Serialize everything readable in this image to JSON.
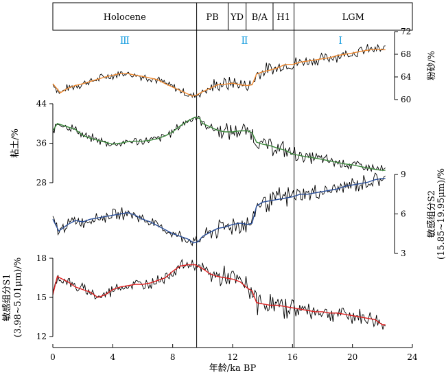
{
  "chart_data": {
    "type": "line",
    "x_axis": {
      "label": "年龄/ka BP",
      "range": [
        0,
        24
      ],
      "ticks": [
        "0",
        "4",
        "8",
        "12",
        "16",
        "20",
        "24"
      ]
    },
    "stages": [
      {
        "name": "Holocene",
        "start": 0,
        "end": 9.6
      },
      {
        "name": "PB",
        "start": 9.6,
        "end": 11.7
      },
      {
        "name": "YD",
        "start": 11.7,
        "end": 12.9
      },
      {
        "name": "B/A",
        "start": 12.9,
        "end": 14.7
      },
      {
        "name": "H1",
        "start": 14.7,
        "end": 16.1
      },
      {
        "name": "LGM",
        "start": 16.1,
        "end": 24
      }
    ],
    "zones": [
      {
        "label": "Ⅲ",
        "x": 4.8
      },
      {
        "label": "Ⅱ",
        "x": 12.8
      },
      {
        "label": "Ⅰ",
        "x": 19.2
      }
    ],
    "boundaries": [
      9.6,
      16.1
    ],
    "zone_color": "#1ea0e0",
    "raw_color": "#000000",
    "panels": [
      {
        "id": "silt",
        "ylabel": "粉砂/%",
        "axis_side": "right",
        "ylim": [
          60,
          72
        ],
        "ticks": [
          "60",
          "64",
          "68",
          "72"
        ],
        "smooth_color": "#f08a30",
        "anchors": [
          [
            0,
            62.8
          ],
          [
            0.5,
            61.2
          ],
          [
            1,
            62
          ],
          [
            1.5,
            62.5
          ],
          [
            2,
            62.8
          ],
          [
            2.5,
            63.2
          ],
          [
            3,
            63.6
          ],
          [
            3.5,
            64
          ],
          [
            4,
            64.3
          ],
          [
            4.5,
            64.6
          ],
          [
            5,
            64.6
          ],
          [
            5.5,
            64.3
          ],
          [
            6,
            64.1
          ],
          [
            6.5,
            63.8
          ],
          [
            7,
            63.5
          ],
          [
            7.5,
            62.8
          ],
          [
            8,
            62.2
          ],
          [
            8.5,
            61.6
          ],
          [
            9,
            61
          ],
          [
            9.3,
            60.6
          ],
          [
            9.6,
            60.8
          ],
          [
            10,
            61.4
          ],
          [
            10.5,
            62
          ],
          [
            11,
            62.6
          ],
          [
            11.5,
            62.7
          ],
          [
            12,
            62.9
          ],
          [
            12.5,
            62.6
          ],
          [
            13,
            62.5
          ],
          [
            13.3,
            62.6
          ],
          [
            13.6,
            64.5
          ],
          [
            14,
            64.9
          ],
          [
            14.5,
            65.2
          ],
          [
            15,
            65.6
          ],
          [
            15.5,
            66.2
          ],
          [
            16,
            66.2
          ],
          [
            16.5,
            66.6
          ],
          [
            17,
            66.8
          ],
          [
            17.5,
            67
          ],
          [
            18,
            67.2
          ],
          [
            18.5,
            67.4
          ],
          [
            19,
            67.8
          ],
          [
            19.5,
            68
          ],
          [
            20,
            68.2
          ],
          [
            20.5,
            68.5
          ],
          [
            21,
            68.7
          ],
          [
            21.5,
            68.9
          ],
          [
            22,
            68.8
          ],
          [
            22.2,
            68.8
          ]
        ],
        "noise": 0.9
      },
      {
        "id": "clay",
        "ylabel": "粘土/%",
        "axis_side": "left",
        "ylim": [
          28,
          44
        ],
        "ticks": [
          "28",
          "36",
          "44"
        ],
        "smooth_color": "#3c8a3c",
        "anchors": [
          [
            0,
            38.5
          ],
          [
            0.3,
            40
          ],
          [
            1,
            39.3
          ],
          [
            1.5,
            38.8
          ],
          [
            2,
            37.6
          ],
          [
            2.5,
            37
          ],
          [
            3,
            36.6
          ],
          [
            3.5,
            36.2
          ],
          [
            4,
            35.8
          ],
          [
            4.5,
            36
          ],
          [
            5,
            36.3
          ],
          [
            5.5,
            36.4
          ],
          [
            6,
            36.4
          ],
          [
            6.5,
            36.6
          ],
          [
            7,
            36.9
          ],
          [
            7.5,
            37.5
          ],
          [
            8,
            38.3
          ],
          [
            8.5,
            39.5
          ],
          [
            9,
            40.5
          ],
          [
            9.5,
            41.3
          ],
          [
            9.8,
            41
          ],
          [
            10,
            40
          ],
          [
            10.5,
            39.3
          ],
          [
            11,
            38.6
          ],
          [
            11.5,
            38.3
          ],
          [
            12,
            38.3
          ],
          [
            12.5,
            38.5
          ],
          [
            13,
            38.5
          ],
          [
            13.3,
            38.1
          ],
          [
            13.6,
            36.2
          ],
          [
            14,
            35.8
          ],
          [
            14.5,
            35.5
          ],
          [
            15,
            35
          ],
          [
            15.5,
            34.6
          ],
          [
            16,
            33.8
          ],
          [
            16.5,
            33.5
          ],
          [
            17,
            33.2
          ],
          [
            17.5,
            33
          ],
          [
            18,
            32.7
          ],
          [
            18.5,
            32.4
          ],
          [
            19,
            32.1
          ],
          [
            19.5,
            31.8
          ],
          [
            20,
            31.6
          ],
          [
            20.5,
            31.3
          ],
          [
            21,
            31
          ],
          [
            21.5,
            30.7
          ],
          [
            22,
            30.5
          ],
          [
            22.2,
            30.5
          ]
        ],
        "noise": 1.1
      },
      {
        "id": "s2",
        "ylabel": "敏感组分S2",
        "ylabel2": "(15.85~19.95μm)/%",
        "axis_side": "right",
        "ylim": [
          3,
          9
        ],
        "ticks": [
          "3",
          "6",
          "9"
        ],
        "smooth_color": "#2a4f9a",
        "anchors": [
          [
            0,
            5.6
          ],
          [
            0.4,
            4.7
          ],
          [
            1,
            5.2
          ],
          [
            1.5,
            5.5
          ],
          [
            2,
            5.4
          ],
          [
            2.5,
            5.6
          ],
          [
            3,
            5.7
          ],
          [
            3.5,
            5.8
          ],
          [
            4,
            5.9
          ],
          [
            4.5,
            6
          ],
          [
            5,
            6.1
          ],
          [
            5.5,
            5.9
          ],
          [
            6,
            5.6
          ],
          [
            6.5,
            5.4
          ],
          [
            7,
            5.1
          ],
          [
            7.5,
            4.8
          ],
          [
            8,
            4.5
          ],
          [
            8.5,
            4.3
          ],
          [
            9,
            4.1
          ],
          [
            9.4,
            3.8
          ],
          [
            9.7,
            3.9
          ],
          [
            10,
            4.3
          ],
          [
            10.5,
            4.6
          ],
          [
            11,
            4.9
          ],
          [
            11.5,
            5
          ],
          [
            12,
            5.2
          ],
          [
            12.5,
            5.3
          ],
          [
            13,
            5.2
          ],
          [
            13.3,
            5.3
          ],
          [
            13.6,
            6.6
          ],
          [
            14,
            6.9
          ],
          [
            14.5,
            7
          ],
          [
            15,
            7.1
          ],
          [
            15.5,
            7.2
          ],
          [
            16,
            7.3
          ],
          [
            16.5,
            7.5
          ],
          [
            17,
            7.5
          ],
          [
            17.5,
            7.6
          ],
          [
            18,
            7.7
          ],
          [
            18.5,
            7.8
          ],
          [
            19,
            7.9
          ],
          [
            19.5,
            8.1
          ],
          [
            20,
            8.2
          ],
          [
            20.5,
            8.3
          ],
          [
            21,
            8.4
          ],
          [
            21.5,
            8.6
          ],
          [
            22,
            8.7
          ],
          [
            22.2,
            8.7
          ]
        ],
        "noise": 0.55
      },
      {
        "id": "s1",
        "ylabel": "敏感组分S1",
        "ylabel2": "(3.98~5.01μm)/%",
        "axis_side": "left",
        "ylim": [
          12,
          18
        ],
        "ticks": [
          "12",
          "15",
          "18"
        ],
        "smooth_color": "#e02020",
        "anchors": [
          [
            0,
            15.2
          ],
          [
            0.3,
            16.6
          ],
          [
            1,
            16.2
          ],
          [
            1.5,
            15.8
          ],
          [
            2,
            15.6
          ],
          [
            2.5,
            15.4
          ],
          [
            3,
            15
          ],
          [
            3.5,
            15.2
          ],
          [
            4,
            15.6
          ],
          [
            4.5,
            15.8
          ],
          [
            5,
            15.9
          ],
          [
            5.5,
            16
          ],
          [
            6,
            16
          ],
          [
            6.5,
            16.1
          ],
          [
            7,
            16.3
          ],
          [
            7.5,
            16.5
          ],
          [
            8,
            17
          ],
          [
            8.5,
            17.4
          ],
          [
            9,
            17.5
          ],
          [
            9.5,
            17.5
          ],
          [
            10,
            17.2
          ],
          [
            10.5,
            16.8
          ],
          [
            11,
            16.6
          ],
          [
            11.5,
            16.5
          ],
          [
            12,
            16.4
          ],
          [
            12.5,
            16.2
          ],
          [
            13,
            15.7
          ],
          [
            13.3,
            15.5
          ],
          [
            13.6,
            14.6
          ],
          [
            14,
            14.5
          ],
          [
            14.5,
            14.4
          ],
          [
            15,
            14.4
          ],
          [
            15.5,
            14.3
          ],
          [
            16,
            14.2
          ],
          [
            16.5,
            14.1
          ],
          [
            17,
            14
          ],
          [
            17.5,
            13.9
          ],
          [
            18,
            13.9
          ],
          [
            18.5,
            13.8
          ],
          [
            19,
            13.8
          ],
          [
            19.5,
            13.7
          ],
          [
            20,
            13.6
          ],
          [
            20.5,
            13.5
          ],
          [
            21,
            13.4
          ],
          [
            21.5,
            13.3
          ],
          [
            22,
            12.9
          ],
          [
            22.2,
            12.9
          ]
        ],
        "noise": 0.55
      }
    ]
  }
}
